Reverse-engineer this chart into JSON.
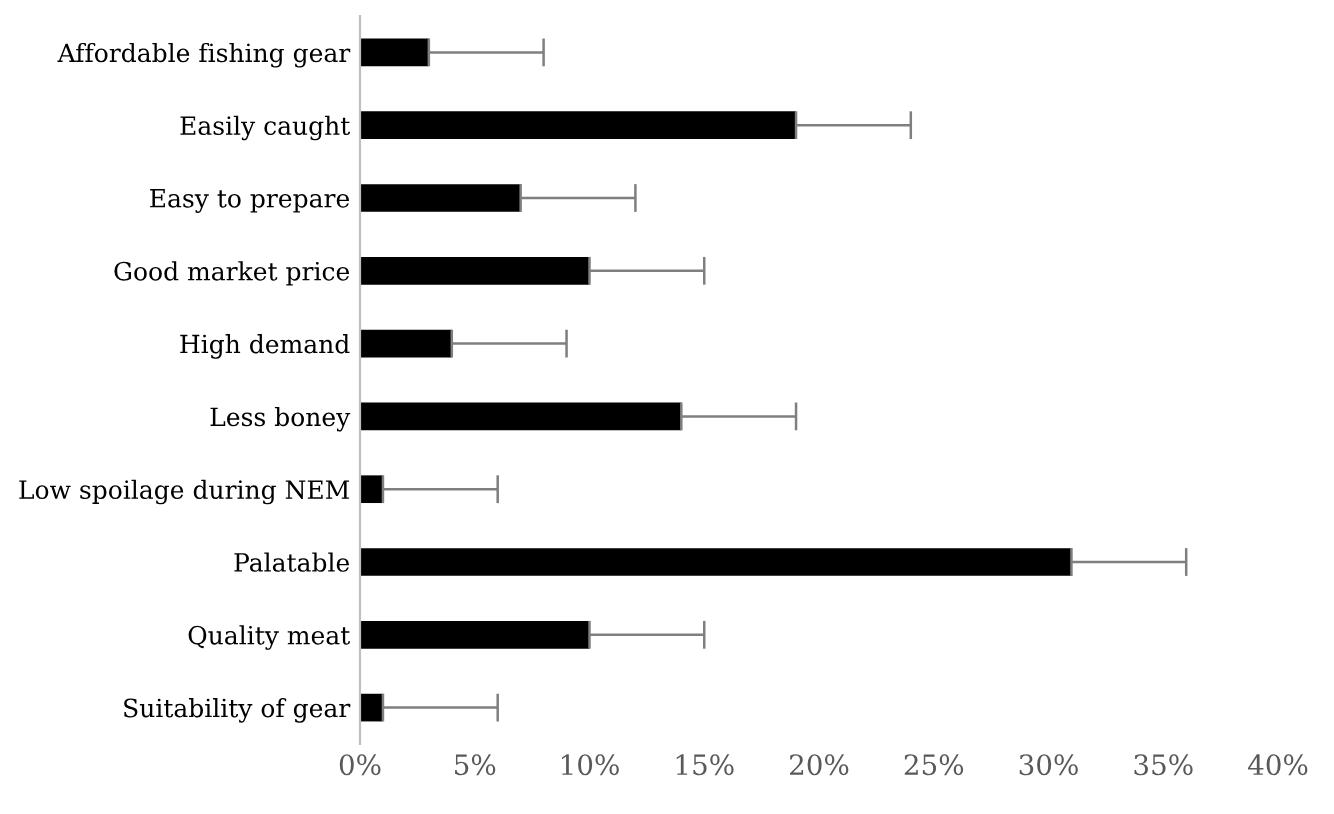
{
  "chart_data": {
    "type": "bar",
    "orientation": "horizontal",
    "categories": [
      "Affordable fishing gear",
      "Easily caught",
      "Easy to prepare",
      "Good market price",
      "High demand",
      "Less boney",
      "Low spoilage during NEM",
      "Palatable",
      "Quality meat",
      "Suitability of gear"
    ],
    "values": [
      3,
      19,
      7,
      10,
      4,
      14,
      1,
      31,
      10,
      1
    ],
    "errors": [
      [
        3,
        8
      ],
      [
        19,
        24
      ],
      [
        7,
        12
      ],
      [
        10,
        15
      ],
      [
        4,
        9
      ],
      [
        14,
        19
      ],
      [
        1,
        6
      ],
      [
        31,
        36
      ],
      [
        10,
        15
      ],
      [
        1,
        6
      ]
    ],
    "color": "#000000",
    "xlim": [
      0,
      40
    ],
    "xticks": [
      {
        "value": 0,
        "label": "0%"
      },
      {
        "value": 5,
        "label": "5%"
      },
      {
        "value": 10,
        "label": "10%"
      },
      {
        "value": 15,
        "label": "15%"
      },
      {
        "value": 20,
        "label": "20%"
      },
      {
        "value": 25,
        "label": "25%"
      },
      {
        "value": 30,
        "label": "30%"
      },
      {
        "value": 35,
        "label": "35%"
      },
      {
        "value": 40,
        "label": "40%"
      }
    ],
    "grid": false,
    "legend": false
  }
}
